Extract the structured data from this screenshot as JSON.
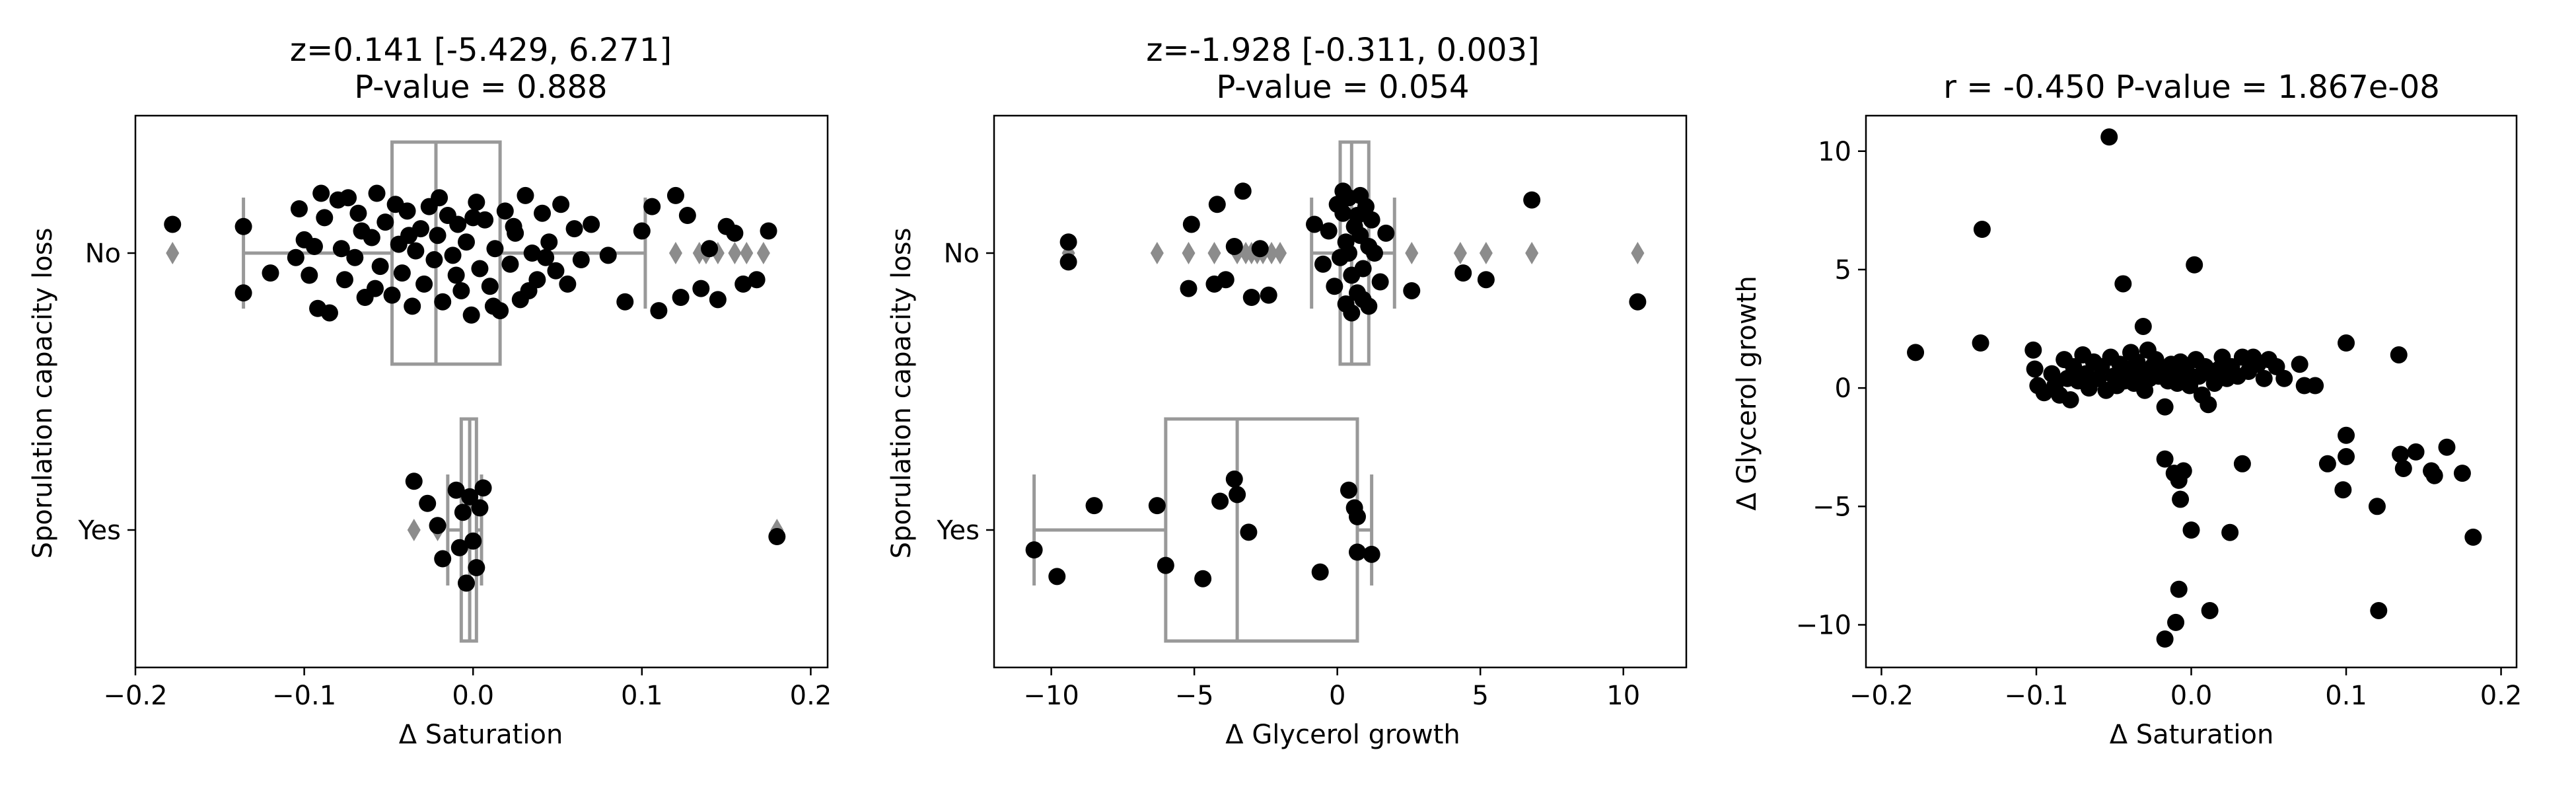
{
  "colors": {
    "points": "#000000",
    "box": "#999999",
    "outlier": "#8c8c8c"
  },
  "chart_data": [
    {
      "type": "box+strip",
      "title_line1": "z=0.141 [-5.429, 6.271]",
      "title_line2": "P-value = 0.888",
      "xlabel": "Δ Saturation",
      "ylabel": "Sporulation capacity loss",
      "xlim": [
        -0.2,
        0.21
      ],
      "xticks": [
        -0.2,
        -0.1,
        0.0,
        0.1,
        0.2
      ],
      "xtick_labels": [
        "−0.2",
        "−0.1",
        "0.0",
        "0.1",
        "0.2"
      ],
      "categories": [
        "No",
        "Yes"
      ],
      "boxes": [
        {
          "category": "No",
          "whisker_low": -0.136,
          "q1": -0.048,
          "median": -0.022,
          "q3": 0.016,
          "whisker_high": 0.102,
          "outliers": [
            -0.178,
            0.12,
            0.134,
            0.138,
            0.145,
            0.155,
            0.162,
            0.172
          ]
        },
        {
          "category": "Yes",
          "whisker_low": -0.015,
          "q1": -0.007,
          "median": -0.002,
          "q3": 0.002,
          "whisker_high": 0.005,
          "outliers": [
            -0.035,
            -0.021,
            0.18
          ]
        }
      ],
      "points": {
        "No": [
          [
            -0.178,
            0.13
          ],
          [
            -0.136,
            -0.18
          ],
          [
            -0.136,
            0.12
          ],
          [
            -0.105,
            -0.02
          ],
          [
            -0.103,
            0.2
          ],
          [
            -0.1,
            0.06
          ],
          [
            -0.097,
            -0.1
          ],
          [
            -0.094,
            0.03
          ],
          [
            -0.092,
            -0.25
          ],
          [
            -0.088,
            0.16
          ],
          [
            -0.085,
            -0.27
          ],
          [
            -0.08,
            0.24
          ],
          [
            -0.078,
            0.02
          ],
          [
            -0.076,
            -0.12
          ],
          [
            -0.074,
            0.25
          ],
          [
            -0.07,
            -0.02
          ],
          [
            -0.066,
            0.1
          ],
          [
            -0.064,
            -0.2
          ],
          [
            -0.06,
            0.07
          ],
          [
            -0.057,
            0.27
          ],
          [
            -0.055,
            -0.06
          ],
          [
            -0.052,
            0.14
          ],
          [
            -0.048,
            -0.19
          ],
          [
            -0.046,
            0.22
          ],
          [
            -0.044,
            0.04
          ],
          [
            -0.042,
            -0.09
          ],
          [
            -0.039,
            0.19
          ],
          [
            -0.036,
            -0.24
          ],
          [
            -0.034,
            0.01
          ],
          [
            -0.031,
            0.11
          ],
          [
            -0.029,
            -0.14
          ],
          [
            -0.026,
            0.21
          ],
          [
            -0.023,
            -0.03
          ],
          [
            -0.021,
            0.08
          ],
          [
            -0.018,
            -0.22
          ],
          [
            -0.015,
            0.17
          ],
          [
            -0.012,
            -0.01
          ],
          [
            -0.009,
            0.13
          ],
          [
            -0.007,
            -0.17
          ],
          [
            -0.004,
            0.05
          ],
          [
            -0.001,
            -0.28
          ],
          [
            0.002,
            0.23
          ],
          [
            0.004,
            -0.07
          ],
          [
            0.007,
            0.15
          ],
          [
            0.01,
            -0.15
          ],
          [
            0.013,
            0.02
          ],
          [
            0.016,
            -0.26
          ],
          [
            0.019,
            0.19
          ],
          [
            0.022,
            -0.05
          ],
          [
            0.025,
            0.09
          ],
          [
            0.028,
            -0.21
          ],
          [
            0.031,
            0.26
          ],
          [
            0.035,
            0.0
          ],
          [
            0.038,
            -0.12
          ],
          [
            0.041,
            0.18
          ],
          [
            0.045,
            0.05
          ],
          [
            0.049,
            -0.08
          ],
          [
            0.052,
            0.22
          ],
          [
            0.056,
            -0.14
          ],
          [
            0.06,
            0.11
          ],
          [
            0.064,
            -0.03
          ],
          [
            0.07,
            0.13
          ],
          [
            0.08,
            -0.01
          ],
          [
            0.09,
            -0.22
          ],
          [
            0.1,
            0.1
          ],
          [
            0.106,
            0.21
          ],
          [
            0.11,
            -0.26
          ],
          [
            0.12,
            0.26
          ],
          [
            0.123,
            -0.2
          ],
          [
            0.127,
            0.17
          ],
          [
            0.135,
            -0.16
          ],
          [
            0.14,
            0.02
          ],
          [
            0.145,
            -0.21
          ],
          [
            0.15,
            0.12
          ],
          [
            0.155,
            0.09
          ],
          [
            0.16,
            -0.14
          ],
          [
            0.168,
            -0.12
          ],
          [
            0.175,
            0.1
          ],
          [
            -0.12,
            -0.09
          ],
          [
            -0.09,
            0.27
          ],
          [
            -0.068,
            0.18
          ],
          [
            -0.058,
            -0.16
          ],
          [
            -0.038,
            0.08
          ],
          [
            -0.02,
            0.25
          ],
          [
            -0.01,
            -0.1
          ],
          [
            0.0,
            0.16
          ],
          [
            0.012,
            -0.24
          ],
          [
            0.024,
            0.12
          ],
          [
            0.033,
            -0.17
          ],
          [
            0.043,
            -0.02
          ]
        ],
        "Yes": [
          [
            -0.035,
            0.22
          ],
          [
            -0.027,
            0.12
          ],
          [
            -0.021,
            0.02
          ],
          [
            -0.018,
            -0.13
          ],
          [
            -0.01,
            0.18
          ],
          [
            -0.008,
            -0.08
          ],
          [
            -0.006,
            0.08
          ],
          [
            -0.004,
            -0.24
          ],
          [
            -0.002,
            0.15
          ],
          [
            0.0,
            -0.05
          ],
          [
            0.002,
            -0.17
          ],
          [
            0.004,
            0.1
          ],
          [
            0.006,
            0.19
          ],
          [
            0.18,
            -0.03
          ]
        ]
      }
    },
    {
      "type": "box+strip",
      "title_line1": "z=-1.928 [-0.311, 0.003]",
      "title_line2": "P-value = 0.054",
      "xlabel": "Δ Glycerol growth",
      "ylabel": "Sporulation capacity loss",
      "xlim": [
        -12,
        12.2
      ],
      "xticks": [
        -10,
        -5,
        0,
        5,
        10
      ],
      "xtick_labels": [
        "−10",
        "−5",
        "0",
        "5",
        "10"
      ],
      "categories": [
        "No",
        "Yes"
      ],
      "boxes": [
        {
          "category": "No",
          "whisker_low": -0.9,
          "q1": 0.1,
          "median": 0.5,
          "q3": 1.1,
          "whisker_high": 2.0,
          "outliers": [
            -9.4,
            -6.3,
            -5.2,
            -4.3,
            -3.5,
            -3.2,
            -3.0,
            -2.8,
            -2.6,
            -2.3,
            -2.0,
            2.6,
            4.3,
            5.2,
            6.8,
            10.5
          ]
        },
        {
          "category": "Yes",
          "whisker_low": -10.6,
          "q1": -6.0,
          "median": -3.5,
          "q3": 0.7,
          "whisker_high": 1.2,
          "outliers": []
        }
      ],
      "points": {
        "No": [
          [
            -9.4,
            0.05
          ],
          [
            -9.4,
            -0.04
          ],
          [
            -5.2,
            -0.16
          ],
          [
            -5.1,
            0.13
          ],
          [
            -4.3,
            -0.14
          ],
          [
            -4.2,
            0.22
          ],
          [
            -3.9,
            -0.12
          ],
          [
            -3.6,
            0.03
          ],
          [
            -3.3,
            0.28
          ],
          [
            -3.0,
            -0.2
          ],
          [
            -2.7,
            0.02
          ],
          [
            -2.4,
            -0.19
          ],
          [
            -0.8,
            0.13
          ],
          [
            -0.5,
            -0.05
          ],
          [
            -0.3,
            0.1
          ],
          [
            -0.1,
            -0.15
          ],
          [
            0.0,
            0.22
          ],
          [
            0.1,
            -0.02
          ],
          [
            0.2,
            0.18
          ],
          [
            0.3,
            -0.23
          ],
          [
            0.3,
            0.05
          ],
          [
            0.4,
            0.25
          ],
          [
            0.5,
            -0.1
          ],
          [
            0.6,
            0.12
          ],
          [
            0.7,
            -0.18
          ],
          [
            0.8,
            0.08
          ],
          [
            0.9,
            -0.07
          ],
          [
            1.0,
            0.21
          ],
          [
            1.1,
            -0.24
          ],
          [
            1.2,
            0.15
          ],
          [
            1.3,
            0.0
          ],
          [
            1.5,
            -0.13
          ],
          [
            1.7,
            0.09
          ],
          [
            2.6,
            -0.17
          ],
          [
            4.4,
            -0.09
          ],
          [
            5.2,
            -0.12
          ],
          [
            6.8,
            0.24
          ],
          [
            10.5,
            -0.22
          ],
          [
            0.2,
            0.28
          ],
          [
            0.5,
            -0.27
          ],
          [
            0.8,
            0.26
          ],
          [
            0.4,
            0.0
          ],
          [
            0.7,
            0.17
          ],
          [
            0.9,
            -0.21
          ],
          [
            1.1,
            0.03
          ]
        ],
        "Yes": [
          [
            -10.6,
            -0.09
          ],
          [
            -9.8,
            -0.21
          ],
          [
            -8.5,
            0.11
          ],
          [
            -6.3,
            0.11
          ],
          [
            -6.0,
            -0.16
          ],
          [
            -4.7,
            -0.22
          ],
          [
            -4.1,
            0.13
          ],
          [
            -3.6,
            0.23
          ],
          [
            -3.5,
            0.16
          ],
          [
            -3.1,
            -0.01
          ],
          [
            -0.6,
            -0.19
          ],
          [
            0.4,
            0.18
          ],
          [
            0.6,
            0.1
          ],
          [
            0.7,
            0.06
          ],
          [
            0.7,
            -0.1
          ],
          [
            1.2,
            -0.11
          ]
        ]
      }
    },
    {
      "type": "scatter",
      "title": "r = -0.450 P-value = 1.867e-08",
      "xlabel": "Δ Saturation",
      "ylabel": "Δ Glycerol growth",
      "xlim": [
        -0.21,
        0.21
      ],
      "ylim": [
        -11.8,
        11.5
      ],
      "xticks": [
        -0.2,
        -0.1,
        0.0,
        0.1,
        0.2
      ],
      "xtick_labels": [
        "−0.2",
        "−0.1",
        "0.0",
        "0.1",
        "0.2"
      ],
      "yticks": [
        -10,
        -5,
        0,
        5,
        10
      ],
      "ytick_labels": [
        "−10",
        "−5",
        "0",
        "5",
        "10"
      ],
      "points": [
        [
          -0.178,
          1.5
        ],
        [
          -0.136,
          1.9
        ],
        [
          -0.135,
          6.7
        ],
        [
          -0.102,
          1.6
        ],
        [
          -0.101,
          0.8
        ],
        [
          -0.099,
          0.1
        ],
        [
          -0.095,
          -0.2
        ],
        [
          -0.09,
          0.6
        ],
        [
          -0.088,
          0.1
        ],
        [
          -0.085,
          -0.3
        ],
        [
          -0.082,
          1.2
        ],
        [
          -0.08,
          0.4
        ],
        [
          -0.078,
          -0.5
        ],
        [
          -0.076,
          0.9
        ],
        [
          -0.073,
          0.3
        ],
        [
          -0.07,
          1.4
        ],
        [
          -0.068,
          0.6
        ],
        [
          -0.066,
          0.0
        ],
        [
          -0.063,
          1.1
        ],
        [
          -0.06,
          0.4
        ],
        [
          -0.058,
          0.9
        ],
        [
          -0.055,
          -0.1
        ],
        [
          -0.053,
          10.6
        ],
        [
          -0.052,
          1.3
        ],
        [
          -0.05,
          0.5
        ],
        [
          -0.048,
          0.1
        ],
        [
          -0.046,
          1.0
        ],
        [
          -0.044,
          4.4
        ],
        [
          -0.043,
          0.3
        ],
        [
          -0.041,
          0.8
        ],
        [
          -0.039,
          1.5
        ],
        [
          -0.037,
          0.2
        ],
        [
          -0.035,
          1.1
        ],
        [
          -0.033,
          0.6
        ],
        [
          -0.031,
          2.6
        ],
        [
          -0.03,
          -0.1
        ],
        [
          -0.028,
          1.6
        ],
        [
          -0.027,
          0.4
        ],
        [
          -0.025,
          0.9
        ],
        [
          -0.023,
          1.2
        ],
        [
          -0.021,
          0.5
        ],
        [
          -0.019,
          0.8
        ],
        [
          -0.017,
          -0.8
        ],
        [
          -0.015,
          0.3
        ],
        [
          -0.013,
          1.0
        ],
        [
          -0.011,
          0.6
        ],
        [
          -0.009,
          0.2
        ],
        [
          -0.007,
          1.1
        ],
        [
          -0.005,
          0.4
        ],
        [
          -0.003,
          0.7
        ],
        [
          -0.001,
          0.1
        ],
        [
          0.002,
          5.2
        ],
        [
          0.003,
          1.2
        ],
        [
          0.005,
          0.5
        ],
        [
          0.007,
          -0.3
        ],
        [
          0.009,
          0.9
        ],
        [
          0.011,
          -0.7
        ],
        [
          0.013,
          0.6
        ],
        [
          0.015,
          0.2
        ],
        [
          0.018,
          0.8
        ],
        [
          0.02,
          1.3
        ],
        [
          0.023,
          0.4
        ],
        [
          0.026,
          0.9
        ],
        [
          0.03,
          0.5
        ],
        [
          0.033,
          1.3
        ],
        [
          0.037,
          0.7
        ],
        [
          0.04,
          1.3
        ],
        [
          0.043,
          1.0
        ],
        [
          0.047,
          0.4
        ],
        [
          0.05,
          1.2
        ],
        [
          0.055,
          0.9
        ],
        [
          0.06,
          0.4
        ],
        [
          0.07,
          1.0
        ],
        [
          0.073,
          0.1
        ],
        [
          0.08,
          0.1
        ],
        [
          -0.017,
          -3.0
        ],
        [
          -0.011,
          -3.6
        ],
        [
          -0.008,
          -3.9
        ],
        [
          -0.007,
          -4.7
        ],
        [
          -0.005,
          -3.5
        ],
        [
          -0.008,
          -8.5
        ],
        [
          -0.01,
          -9.9
        ],
        [
          -0.017,
          -10.6
        ],
        [
          0.0,
          -6.0
        ],
        [
          0.012,
          -9.4
        ],
        [
          0.025,
          -6.1
        ],
        [
          0.033,
          -3.2
        ],
        [
          0.088,
          -3.2
        ],
        [
          0.1,
          -2.0
        ],
        [
          0.1,
          1.9
        ],
        [
          0.1,
          -2.9
        ],
        [
          0.098,
          -4.3
        ],
        [
          0.12,
          -5.0
        ],
        [
          0.121,
          -9.4
        ],
        [
          0.134,
          1.4
        ],
        [
          0.135,
          -2.8
        ],
        [
          0.137,
          -3.4
        ],
        [
          0.145,
          -2.7
        ],
        [
          0.155,
          -3.5
        ],
        [
          0.157,
          -3.7
        ],
        [
          0.165,
          -2.5
        ],
        [
          0.175,
          -3.6
        ],
        [
          0.182,
          -6.3
        ]
      ]
    }
  ]
}
